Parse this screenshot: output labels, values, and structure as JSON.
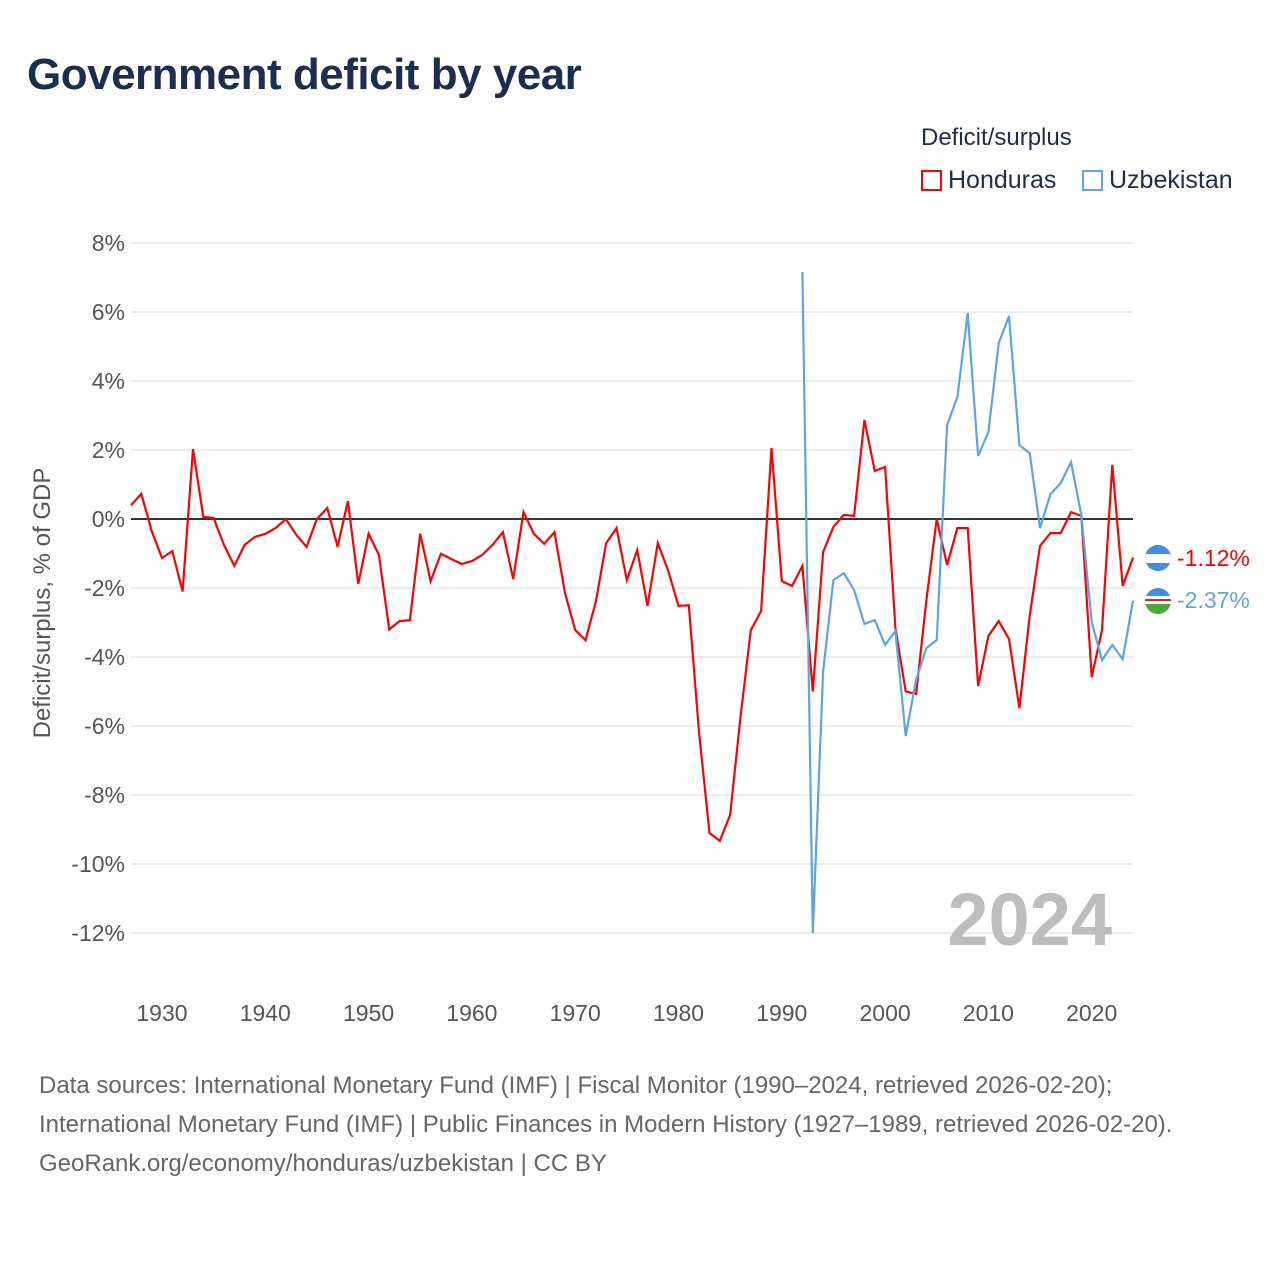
{
  "title": "Government deficit by year",
  "legend": {
    "title": "Deficit/surplus",
    "items": [
      {
        "label": "Honduras",
        "color": "#ff0000"
      },
      {
        "label": "Uzbekistan",
        "color": "#5aa5ea"
      }
    ]
  },
  "watermark_year": "2024",
  "end_labels": {
    "honduras": "-1.12%",
    "uzbekistan": "-2.37%"
  },
  "footer": {
    "sources": "Data sources: International Monetary Fund (IMF) | Fiscal Monitor (1990–2024, retrieved 2026-02-20); International Monetary Fund (IMF) | Public Finances in Modern History (1927–1989, retrieved 2026-02-20).",
    "link": "GeoRank.org/economy/honduras/uzbekistan | CC BY"
  },
  "chart_data": {
    "type": "line",
    "title": "Government deficit by year",
    "xlabel": "",
    "ylabel": "Deficit/surplus, % of GDP",
    "xlim": [
      1927,
      2024
    ],
    "ylim": [
      -12,
      8
    ],
    "yticks": [
      8,
      6,
      4,
      2,
      0,
      -2,
      -4,
      -6,
      -8,
      -10,
      -12
    ],
    "ytick_labels": [
      "8%",
      "6%",
      "4%",
      "2%",
      "0%",
      "-2%",
      "-4%",
      "-6%",
      "-8%",
      "-10%",
      "-12%"
    ],
    "xticks": [
      1930,
      1940,
      1950,
      1960,
      1970,
      1980,
      1990,
      2000,
      2010,
      2020
    ],
    "grid": true,
    "legend_position": "top-right",
    "series": [
      {
        "name": "Honduras",
        "color": "#ff0000",
        "start_year": 1927,
        "values": [
          0.4,
          0.73,
          -0.35,
          -1.13,
          -0.93,
          -2.1,
          2.03,
          0.06,
          0.03,
          -0.75,
          -1.36,
          -0.75,
          -0.52,
          -0.43,
          -0.26,
          0.0,
          -0.46,
          -0.81,
          0.0,
          0.32,
          -0.81,
          0.52,
          -1.88,
          -0.43,
          -1.04,
          -3.2,
          -2.96,
          -2.93,
          -0.43,
          -1.8,
          -1.01,
          -1.16,
          -1.3,
          -1.22,
          -1.04,
          -0.75,
          -0.38,
          -1.74,
          0.2,
          -0.43,
          -0.72,
          -0.38,
          -2.14,
          -3.22,
          -3.51,
          -2.4,
          -0.7,
          -0.26,
          -1.77,
          -0.9,
          -2.52,
          -0.7,
          -1.5,
          -2.52,
          -2.5,
          -6.2,
          -9.1,
          -9.33,
          -8.58,
          -5.74,
          -3.22,
          -2.67,
          2.06,
          -1.8,
          -1.94,
          -1.36,
          -5.0,
          -0.96,
          -0.23,
          0.12,
          0.09,
          2.87,
          1.39,
          1.51,
          -3.16,
          -5.0,
          -5.07,
          -2.35,
          0.0,
          -1.33,
          -0.26,
          -0.26,
          -4.84,
          -3.39,
          -2.96,
          -3.48,
          -5.48,
          -2.81,
          -0.78,
          -0.41,
          -0.41,
          0.2,
          0.09,
          -4.58,
          -3.22,
          1.57,
          -1.94,
          -1.12
        ]
      },
      {
        "name": "Uzbekistan",
        "color": "#5aa5ea",
        "start_year": 1992,
        "values": [
          7.16,
          -12.0,
          -4.43,
          -1.77,
          -1.57,
          -2.06,
          -3.04,
          -2.93,
          -3.65,
          -3.25,
          -6.29,
          -4.67,
          -3.74,
          -3.51,
          2.72,
          3.54,
          5.97,
          1.83,
          2.52,
          5.1,
          5.88,
          2.14,
          1.91,
          -0.26,
          0.72,
          1.04,
          1.65,
          0.1,
          -2.99,
          -4.09,
          -3.65,
          -4.06,
          -2.37
        ]
      }
    ]
  }
}
